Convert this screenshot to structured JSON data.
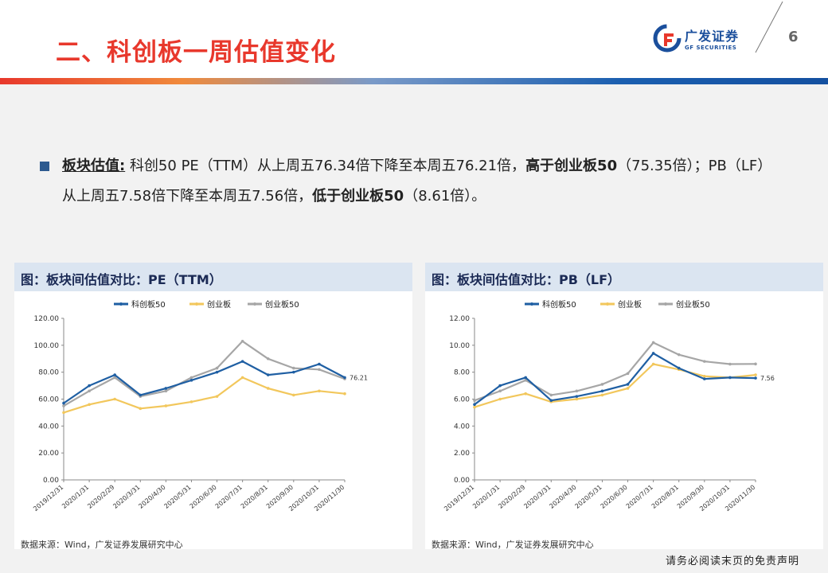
{
  "header": {
    "title": "二、科创板一周估值变化",
    "logo_cn": "广发证券",
    "logo_en": "GF SECURITIES",
    "page_number": "6"
  },
  "bullet": {
    "label": "板块估值:",
    "text1": "科创50 PE（TTM）从上周五76.34倍下降至本周五76.21倍，",
    "bold1": "高于创业板50",
    "text2": "（75.35倍）；PB（LF）从上周五7.58倍下降至本周五7.56倍，",
    "bold2": "低于创业板50",
    "text3": "（8.61倍）。"
  },
  "charts": {
    "pe_title": "图：板块间估值对比：PE（TTM）",
    "pb_title": "图：板块间估值对比：PB（LF）",
    "source_left": "数据来源：Wind，广发证券发展研究中心",
    "source_right": "数据来源：Wind，广发证券发展研究中心"
  },
  "footer": {
    "disclaimer": "请务必阅读末页的免责声明"
  },
  "colors": {
    "series": [
      "#1f5fa3",
      "#f2c75c",
      "#a6a6a6"
    ],
    "title_red": "#e8382c",
    "panel_head": "#dbe5f1"
  },
  "chart_data": [
    {
      "type": "line",
      "title": "图：板块间估值对比：PE（TTM）",
      "x": [
        "2019/12/31",
        "2020/1/31",
        "2020/2/29",
        "2020/3/31",
        "2020/4/30",
        "2020/5/31",
        "2020/6/30",
        "2020/7/31",
        "2020/8/31",
        "2020/9/30",
        "2020/10/31",
        "2020/11/30"
      ],
      "ylim": [
        0,
        120
      ],
      "yticks": [
        "0.00",
        "20.00",
        "40.00",
        "60.00",
        "80.00",
        "100.00",
        "120.00"
      ],
      "legend": "top",
      "annotation": "76.21",
      "series": [
        {
          "name": "科创板50",
          "color": "#1f5fa3",
          "values": [
            57,
            70,
            78,
            63,
            68,
            74,
            80,
            88,
            78,
            80,
            86,
            76
          ]
        },
        {
          "name": "创业板",
          "color": "#f2c75c",
          "values": [
            50,
            56,
            60,
            53,
            55,
            58,
            62,
            76,
            68,
            63,
            66,
            64
          ]
        },
        {
          "name": "创业板50",
          "color": "#a6a6a6",
          "values": [
            55,
            66,
            76,
            62,
            66,
            76,
            83,
            103,
            90,
            83,
            82,
            75
          ]
        }
      ]
    },
    {
      "type": "line",
      "title": "图：板块间估值对比：PB（LF）",
      "x": [
        "2019/12/31",
        "2020/1/31",
        "2020/2/29",
        "2020/3/31",
        "2020/4/30",
        "2020/5/31",
        "2020/6/30",
        "2020/7/31",
        "2020/8/31",
        "2020/9/30",
        "2020/10/31",
        "2020/11/30"
      ],
      "ylim": [
        0,
        12
      ],
      "yticks": [
        "0.00",
        "2.00",
        "4.00",
        "6.00",
        "8.00",
        "10.00",
        "12.00"
      ],
      "legend": "top",
      "annotation": "7.56",
      "series": [
        {
          "name": "科创板50",
          "color": "#1f5fa3",
          "values": [
            5.6,
            7.0,
            7.6,
            5.9,
            6.2,
            6.6,
            7.1,
            9.4,
            8.3,
            7.5,
            7.6,
            7.56
          ]
        },
        {
          "name": "创业板",
          "color": "#f2c75c",
          "values": [
            5.4,
            6.0,
            6.4,
            5.8,
            6.0,
            6.3,
            6.8,
            8.6,
            8.2,
            7.7,
            7.6,
            7.8
          ]
        },
        {
          "name": "创业板50",
          "color": "#a6a6a6",
          "values": [
            5.9,
            6.6,
            7.4,
            6.3,
            6.6,
            7.1,
            7.9,
            10.2,
            9.3,
            8.8,
            8.6,
            8.61
          ]
        }
      ]
    }
  ]
}
